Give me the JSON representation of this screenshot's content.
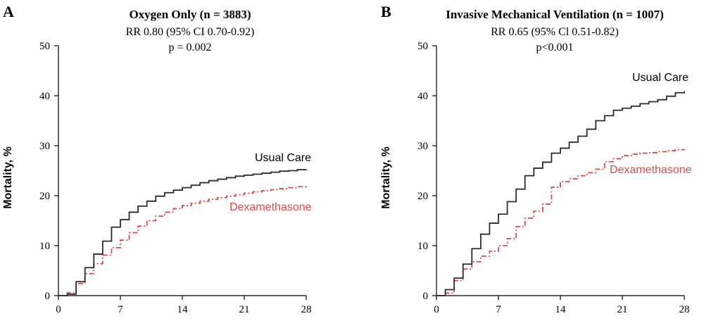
{
  "colors": {
    "usual_care": "#2b2b2b",
    "dexamethasone": "#e0474c"
  },
  "chart_data": [
    {
      "type": "line",
      "panel": "A",
      "title": "Oxygen Only (n = 3883)",
      "subtitle_lines": [
        "RR 0.80 (95% CI 0.70-0.92)",
        "p = 0.002"
      ],
      "xlabel": "",
      "ylabel": "Mortality, %",
      "xlim": [
        0,
        28
      ],
      "ylim": [
        0,
        50
      ],
      "xticks": [
        0,
        7,
        14,
        21,
        28
      ],
      "yticks": [
        0,
        10,
        20,
        30,
        40,
        50
      ],
      "step": true,
      "series": [
        {
          "name": "Usual Care",
          "style": "solid",
          "x": [
            0,
            1,
            2,
            3,
            4,
            5,
            6,
            7,
            8,
            9,
            10,
            11,
            12,
            13,
            14,
            15,
            16,
            17,
            18,
            19,
            20,
            21,
            22,
            23,
            24,
            25,
            26,
            27,
            28
          ],
          "y": [
            0,
            0.3,
            2.8,
            5.6,
            8.3,
            10.9,
            13.7,
            15.2,
            16.7,
            17.9,
            18.9,
            19.9,
            20.6,
            21.1,
            21.6,
            22.1,
            22.6,
            23.0,
            23.3,
            23.6,
            23.9,
            24.1,
            24.3,
            24.5,
            24.7,
            24.9,
            25.0,
            25.2,
            25.3
          ]
        },
        {
          "name": "Dexamethasone",
          "style": "dashdot",
          "x": [
            0,
            1,
            2,
            3,
            4,
            5,
            6,
            7,
            8,
            9,
            10,
            11,
            12,
            13,
            14,
            15,
            16,
            17,
            18,
            19,
            20,
            21,
            22,
            23,
            24,
            25,
            26,
            27,
            28
          ],
          "y": [
            0,
            0.6,
            2.4,
            4.4,
            6.4,
            8.1,
            9.6,
            11.1,
            12.6,
            13.9,
            15.0,
            15.9,
            16.7,
            17.4,
            18.0,
            18.5,
            18.9,
            19.3,
            19.6,
            19.9,
            20.2,
            20.5,
            20.8,
            21.0,
            21.2,
            21.4,
            21.6,
            21.8,
            21.9
          ]
        }
      ]
    },
    {
      "type": "line",
      "panel": "B",
      "title": "Invasive Mechanical Ventilation (n = 1007)",
      "subtitle_lines": [
        "RR 0.65 (95% Cl 0.51-0.82)",
        "p<0.001"
      ],
      "xlabel": "",
      "ylabel": "Mortality, %",
      "xlim": [
        0,
        28
      ],
      "ylim": [
        0,
        50
      ],
      "xticks": [
        0,
        7,
        14,
        21,
        28
      ],
      "yticks": [
        0,
        10,
        20,
        30,
        40,
        50
      ],
      "step": true,
      "series": [
        {
          "name": "Usual Care",
          "style": "solid",
          "x": [
            0,
            1,
            2,
            3,
            4,
            5,
            6,
            7,
            8,
            9,
            10,
            11,
            12,
            13,
            14,
            15,
            16,
            17,
            18,
            19,
            20,
            21,
            22,
            23,
            24,
            25,
            26,
            27,
            28
          ],
          "y": [
            0,
            1.2,
            3.5,
            6.3,
            9.4,
            12.3,
            14.5,
            16.3,
            18.8,
            21.3,
            24.0,
            25.5,
            26.7,
            28.5,
            29.5,
            30.7,
            31.9,
            33.3,
            35.0,
            36.0,
            37.1,
            37.5,
            37.9,
            38.4,
            38.8,
            39.2,
            39.9,
            40.6,
            40.9
          ]
        },
        {
          "name": "Dexamethasone",
          "style": "dashdot",
          "x": [
            0,
            1,
            2,
            3,
            4,
            5,
            6,
            7,
            8,
            9,
            10,
            11,
            12,
            13,
            14,
            15,
            16,
            17,
            18,
            19,
            20,
            21,
            22,
            23,
            24,
            25,
            26,
            27,
            28
          ],
          "y": [
            0,
            0.5,
            3.0,
            5.3,
            6.8,
            7.9,
            8.9,
            10.0,
            11.4,
            13.8,
            15.5,
            16.9,
            18.3,
            21.7,
            22.8,
            23.4,
            24.0,
            24.6,
            25.3,
            26.8,
            27.4,
            28.0,
            28.3,
            28.5,
            28.6,
            28.8,
            29.0,
            29.2,
            29.3
          ]
        }
      ]
    }
  ]
}
